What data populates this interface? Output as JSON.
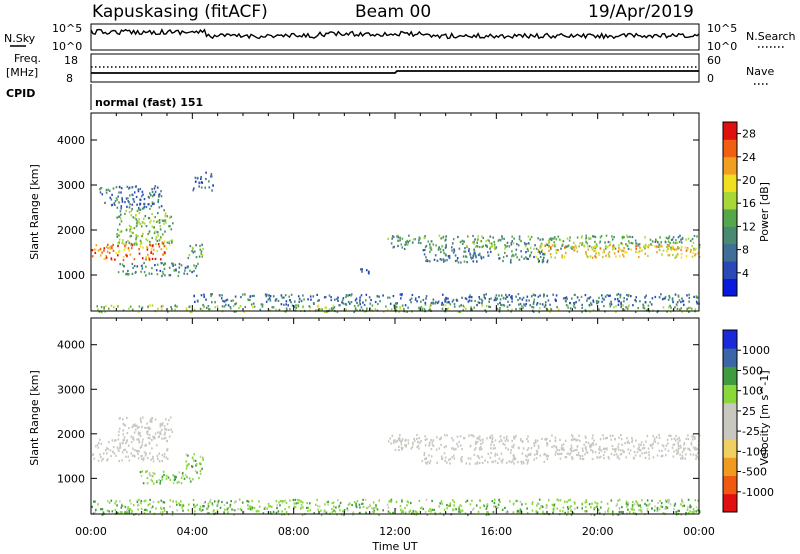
{
  "header": {
    "station": "Kapuskasing (fitACF)",
    "beam": "Beam 00",
    "date": "19/Apr/2019"
  },
  "params": {
    "nsky_label": "N.Sky",
    "nsky_tick_top": "10^5",
    "nsky_tick_bottom": "10^0",
    "nsearch_label": "N.Search",
    "nsearch_tick_top": "10^5",
    "nsearch_tick_bottom": "10^0",
    "freq_label": "Freq.",
    "freq_unit": "[MHz]",
    "freq_tick_top": "18",
    "freq_tick_bottom": "8",
    "nave_label": "Nave",
    "nave_tick_top": "60",
    "nave_tick_bottom": "0",
    "cpid_label": "CPID",
    "cpid_value": "normal (fast) 151"
  },
  "colors": {
    "power": [
      "#0a1adc",
      "#2a48b8",
      "#3f6e96",
      "#4a8a72",
      "#55a84a",
      "#a8d838",
      "#f0e020",
      "#f0a020",
      "#f06010",
      "#e01010"
    ],
    "velocity": [
      "#e01010",
      "#f05a10",
      "#f09a20",
      "#f0d060",
      "#c8c8c0",
      "#c8c8c0",
      "#8ad83a",
      "#3f9a40",
      "#3a66a8",
      "#1a2ad8"
    ]
  },
  "chart_data": [
    {
      "type": "heatmap",
      "quantity": "power",
      "xlabel": "",
      "ylabel": "Slant Range [km]",
      "yticks": [
        "1000",
        "2000",
        "3000",
        "4000"
      ],
      "ytick_values": [
        1000,
        2000,
        3000,
        4000
      ],
      "ylim": [
        200,
        4600
      ],
      "xlim": [
        0,
        24
      ],
      "colorbar_label": "Power [dB]",
      "colorbar_ticks": [
        "4",
        "8",
        "12",
        "16",
        "20",
        "24",
        "28"
      ],
      "colorbar_range": [
        0,
        30
      ],
      "regions": [
        {
          "t0": 0.0,
          "t1": 3.0,
          "r0": 1350,
          "r1": 1750,
          "level": 24
        },
        {
          "t0": 1.0,
          "t1": 3.2,
          "r0": 1700,
          "r1": 2500,
          "level": 14
        },
        {
          "t0": 0.3,
          "t1": 2.8,
          "r0": 2500,
          "r1": 3000,
          "level": 8
        },
        {
          "t0": 1.0,
          "t1": 4.2,
          "r0": 1000,
          "r1": 1300,
          "level": 10
        },
        {
          "t0": 3.8,
          "t1": 4.4,
          "r0": 1400,
          "r1": 1700,
          "level": 13
        },
        {
          "t0": 4.0,
          "t1": 4.8,
          "r0": 2900,
          "r1": 3300,
          "level": 7
        },
        {
          "t0": 11.7,
          "t1": 24.0,
          "r0": 1600,
          "r1": 1900,
          "level": 12
        },
        {
          "t0": 17.5,
          "t1": 24.0,
          "r0": 1400,
          "r1": 1700,
          "level": 20
        },
        {
          "t0": 13.0,
          "t1": 18.0,
          "r0": 1300,
          "r1": 1600,
          "level": 9
        },
        {
          "t0": 10.5,
          "t1": 11.0,
          "r0": 1000,
          "r1": 1200,
          "level": 9
        },
        {
          "t0": 0.0,
          "t1": 24.0,
          "r0": 200,
          "r1": 350,
          "level": 14
        },
        {
          "t0": 4.0,
          "t1": 24.0,
          "r0": 350,
          "r1": 600,
          "level": 8
        }
      ]
    },
    {
      "type": "heatmap",
      "quantity": "velocity",
      "xlabel": "Time UT",
      "xticks": [
        "00:00",
        "04:00",
        "08:00",
        "12:00",
        "16:00",
        "20:00",
        "00:00"
      ],
      "xtick_values": [
        0,
        4,
        8,
        12,
        16,
        20,
        24
      ],
      "ylabel": "Slant Range [km]",
      "yticks": [
        "1000",
        "2000",
        "3000",
        "4000"
      ],
      "ytick_values": [
        1000,
        2000,
        3000,
        4000
      ],
      "ylim": [
        200,
        4600
      ],
      "xlim": [
        0,
        24
      ],
      "colorbar_label": "Velocity [m s^-1]",
      "colorbar_ticks": [
        "-1000",
        "-500",
        "-100",
        "-25",
        "25",
        "100",
        "500",
        "1000"
      ],
      "regions": [
        {
          "t0": 0.0,
          "t1": 3.0,
          "r0": 1400,
          "r1": 1900,
          "vel": 0
        },
        {
          "t0": 1.0,
          "t1": 3.2,
          "r0": 1900,
          "r1": 2400,
          "vel": 0
        },
        {
          "t0": 1.8,
          "t1": 4.3,
          "r0": 900,
          "r1": 1200,
          "vel": 60
        },
        {
          "t0": 3.7,
          "t1": 4.4,
          "r0": 1200,
          "r1": 1600,
          "vel": 60
        },
        {
          "t0": 11.7,
          "t1": 24.0,
          "r0": 1650,
          "r1": 2000,
          "vel": 0
        },
        {
          "t0": 17.5,
          "t1": 24.0,
          "r0": 1450,
          "r1": 1700,
          "vel": 0
        },
        {
          "t0": 13.0,
          "t1": 18.0,
          "r0": 1350,
          "r1": 1600,
          "vel": 0
        },
        {
          "t0": 0.0,
          "t1": 24.0,
          "r0": 200,
          "r1": 550,
          "vel": 80
        }
      ]
    }
  ]
}
